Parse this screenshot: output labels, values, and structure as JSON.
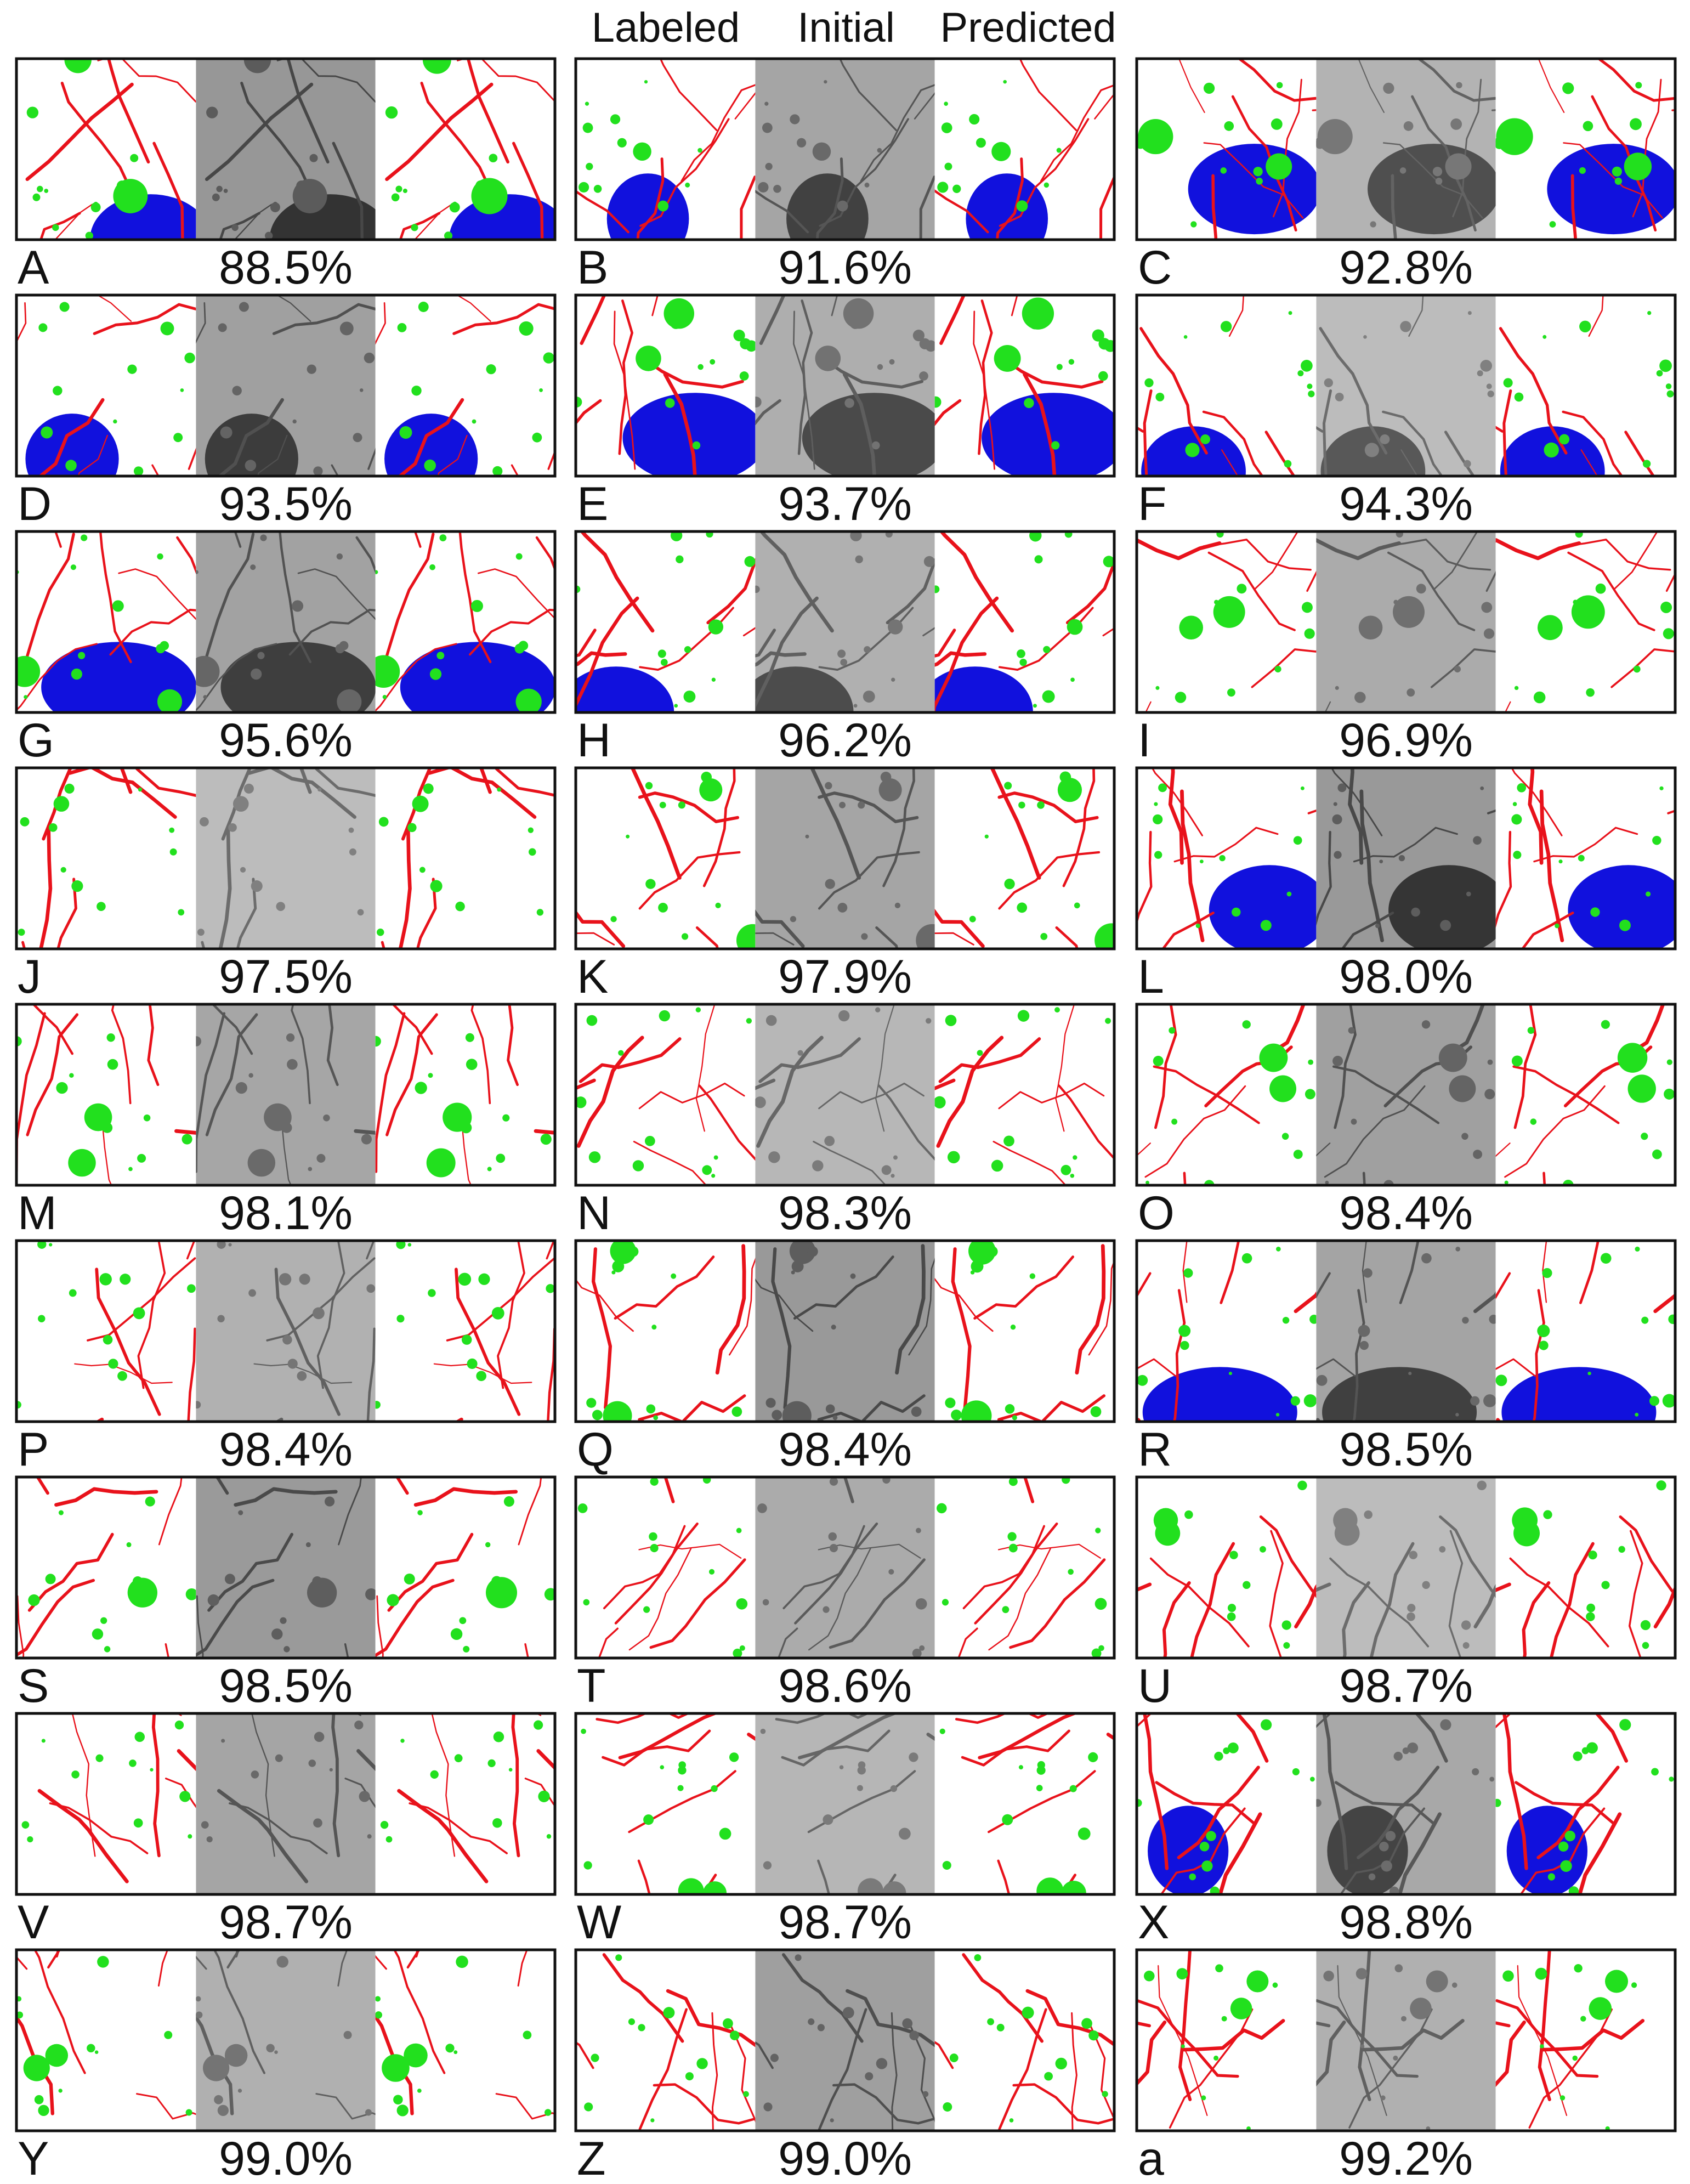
{
  "header": {
    "columns": [
      "Labeled",
      "Initial",
      "Predicted"
    ]
  },
  "panels": [
    {
      "letter": "A",
      "accuracy": "88.5%"
    },
    {
      "letter": "B",
      "accuracy": "91.6%"
    },
    {
      "letter": "C",
      "accuracy": "92.8%"
    },
    {
      "letter": "D",
      "accuracy": "93.5%"
    },
    {
      "letter": "E",
      "accuracy": "93.7%"
    },
    {
      "letter": "F",
      "accuracy": "94.3%"
    },
    {
      "letter": "G",
      "accuracy": "95.6%"
    },
    {
      "letter": "H",
      "accuracy": "96.2%"
    },
    {
      "letter": "I",
      "accuracy": "96.9%"
    },
    {
      "letter": "J",
      "accuracy": "97.5%"
    },
    {
      "letter": "K",
      "accuracy": "97.9%"
    },
    {
      "letter": "L",
      "accuracy": "98.0%"
    },
    {
      "letter": "M",
      "accuracy": "98.1%"
    },
    {
      "letter": "N",
      "accuracy": "98.3%"
    },
    {
      "letter": "O",
      "accuracy": "98.4%"
    },
    {
      "letter": "P",
      "accuracy": "98.4%"
    },
    {
      "letter": "Q",
      "accuracy": "98.4%"
    },
    {
      "letter": "R",
      "accuracy": "98.5%"
    },
    {
      "letter": "S",
      "accuracy": "98.5%"
    },
    {
      "letter": "T",
      "accuracy": "98.6%"
    },
    {
      "letter": "U",
      "accuracy": "98.7%"
    },
    {
      "letter": "V",
      "accuracy": "98.7%"
    },
    {
      "letter": "W",
      "accuracy": "98.7%"
    },
    {
      "letter": "X",
      "accuracy": "98.8%"
    },
    {
      "letter": "Y",
      "accuracy": "99.0%"
    },
    {
      "letter": "Z",
      "accuracy": "99.0%"
    },
    {
      "letter": "a",
      "accuracy": "99.2%"
    }
  ]
}
